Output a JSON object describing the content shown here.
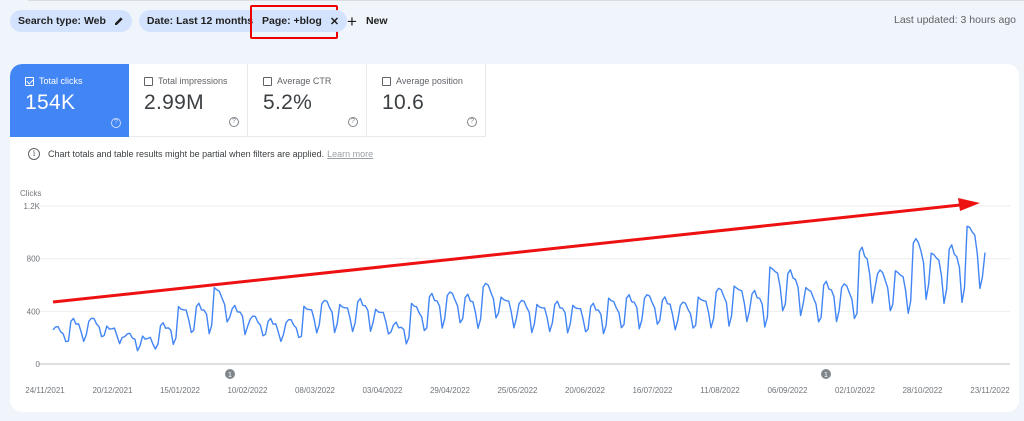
{
  "filters": {
    "chips": [
      {
        "label": "Search type: Web",
        "icon": "pencil-icon"
      },
      {
        "label": "Date: Last 12 months",
        "icon": "pencil-icon"
      },
      {
        "label": "Page: +blog",
        "icon": "close-icon"
      }
    ],
    "new_label": "New",
    "last_updated": "Last updated: 3 hours ago"
  },
  "metrics": [
    {
      "label": "Total clicks",
      "value": "154K",
      "checked": true
    },
    {
      "label": "Total impressions",
      "value": "2.99M",
      "checked": false
    },
    {
      "label": "Average CTR",
      "value": "5.2%",
      "checked": false
    },
    {
      "label": "Average position",
      "value": "10.6",
      "checked": false
    }
  ],
  "notice": {
    "text": "Chart totals and table results might be partial when filters are applied.",
    "link": "Learn more"
  },
  "colors": {
    "accent": "#4285f4",
    "line": "#4285f4",
    "annotation_arrow": "#ff0000",
    "chip_bg": "#d3e3fd",
    "page_bg": "#f0f4fb"
  },
  "chart_data": {
    "type": "line",
    "title": "",
    "xlabel": "",
    "ylabel": "Clicks",
    "ylim": [
      0,
      1200
    ],
    "y_ticks": [
      "0",
      "400",
      "800",
      "1.2K"
    ],
    "x_ticks": [
      "24/11/2021",
      "20/12/2021",
      "15/01/2022",
      "10/02/2022",
      "08/03/2022",
      "03/04/2022",
      "29/04/2022",
      "25/05/2022",
      "20/06/2022",
      "16/07/2022",
      "11/08/2022",
      "06/09/2022",
      "02/10/2022",
      "28/10/2022",
      "23/11/2022"
    ],
    "grid": true,
    "legend": "none",
    "annotations": [
      {
        "label": "1",
        "date_approx": "10/02/2022"
      },
      {
        "label": "1",
        "date_approx": "28/09/2022"
      }
    ],
    "overlay": "red trend arrow drawn from ~470 clicks (start) upward to ~1200 clicks (end)",
    "series": [
      {
        "name": "Clicks",
        "weekly_peaks": [
          280,
          320,
          340,
          280,
          220,
          200,
          300,
          420,
          440,
          560,
          420,
          360,
          320,
          330,
          430,
          470,
          440,
          480,
          400,
          300,
          440,
          510,
          540,
          500,
          600,
          500,
          470,
          440,
          460,
          430,
          440,
          480,
          500,
          520,
          480,
          460,
          500,
          560,
          580,
          540,
          720,
          690,
          560,
          600,
          600,
          850,
          700,
          700,
          930,
          830,
          880,
          1030,
          850
        ],
        "weekday_factors": [
          1.0,
          1.02,
          0.97,
          0.93,
          0.82,
          0.55,
          0.66
        ]
      }
    ]
  }
}
